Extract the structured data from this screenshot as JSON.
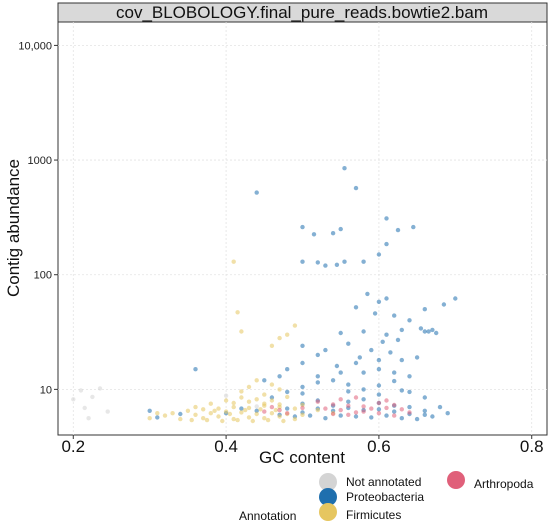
{
  "chart_data": {
    "type": "scatter",
    "title": "cov_BLOBOLOGY.final_pure_reads.bowtie2.bam",
    "xlabel": "GC content",
    "ylabel": "Contig abundance",
    "xlim": [
      0.18,
      0.82
    ],
    "ylim": [
      4,
      16000
    ],
    "y_scale": "log",
    "x_ticks": [
      0.2,
      0.4,
      0.6,
      0.8
    ],
    "x_tick_labels": [
      "0.2",
      "0.4",
      "0.6",
      "0.8"
    ],
    "y_ticks": [
      10,
      100,
      1000,
      10000
    ],
    "y_tick_labels": [
      "10",
      "100",
      "1000",
      "10,000"
    ],
    "grid": true,
    "legend": {
      "title": "Annotation",
      "placement": "bottom",
      "entries": [
        "Not annotated",
        "Proteobacteria",
        "Firmicutes",
        "Arthropoda"
      ]
    },
    "colors": {
      "Not annotated": "#d4d4d4",
      "Proteobacteria": "#1f6fae",
      "Firmicutes": "#e6c660",
      "Arthropoda": "#e0607a"
    },
    "series": [
      {
        "name": "Not annotated",
        "points": [
          [
            0.21,
            9.8
          ],
          [
            0.225,
            8.6
          ],
          [
            0.235,
            10.2
          ],
          [
            0.215,
            6.9
          ],
          [
            0.245,
            6.4
          ],
          [
            0.22,
            5.6
          ],
          [
            0.2,
            8.2
          ],
          [
            0.4,
            8.8
          ],
          [
            0.44,
            7.1
          ]
        ]
      },
      {
        "name": "Proteobacteria",
        "points": [
          [
            0.555,
            850
          ],
          [
            0.44,
            520
          ],
          [
            0.57,
            570
          ],
          [
            0.5,
            260
          ],
          [
            0.61,
            310
          ],
          [
            0.645,
            260
          ],
          [
            0.55,
            250
          ],
          [
            0.625,
            245
          ],
          [
            0.515,
            225
          ],
          [
            0.54,
            230
          ],
          [
            0.5,
            130
          ],
          [
            0.52,
            128
          ],
          [
            0.53,
            120
          ],
          [
            0.545,
            122
          ],
          [
            0.555,
            130
          ],
          [
            0.61,
            185
          ],
          [
            0.6,
            150
          ],
          [
            0.58,
            130
          ],
          [
            0.7,
            62
          ],
          [
            0.685,
            55
          ],
          [
            0.66,
            50
          ],
          [
            0.585,
            68
          ],
          [
            0.6,
            58
          ],
          [
            0.61,
            62
          ],
          [
            0.57,
            52
          ],
          [
            0.595,
            46
          ],
          [
            0.62,
            44
          ],
          [
            0.64,
            40
          ],
          [
            0.655,
            34
          ],
          [
            0.66,
            32
          ],
          [
            0.665,
            32
          ],
          [
            0.67,
            33
          ],
          [
            0.675,
            31
          ],
          [
            0.63,
            33
          ],
          [
            0.61,
            30
          ],
          [
            0.58,
            32
          ],
          [
            0.55,
            31
          ],
          [
            0.56,
            25
          ],
          [
            0.53,
            22
          ],
          [
            0.52,
            20
          ],
          [
            0.5,
            24
          ],
          [
            0.59,
            22
          ],
          [
            0.6,
            18
          ],
          [
            0.57,
            17
          ],
          [
            0.63,
            18
          ],
          [
            0.65,
            19
          ],
          [
            0.5,
            17
          ],
          [
            0.48,
            15
          ],
          [
            0.55,
            14
          ],
          [
            0.6,
            15
          ],
          [
            0.62,
            14
          ],
          [
            0.58,
            14
          ],
          [
            0.64,
            13
          ],
          [
            0.52,
            13
          ],
          [
            0.47,
            13
          ],
          [
            0.45,
            12
          ],
          [
            0.36,
            15
          ],
          [
            0.3,
            6.5
          ],
          [
            0.31,
            5.7
          ],
          [
            0.34,
            6.1
          ],
          [
            0.46,
            8.5
          ],
          [
            0.48,
            9.5
          ],
          [
            0.5,
            10.5
          ],
          [
            0.52,
            11.5
          ],
          [
            0.54,
            12
          ],
          [
            0.56,
            11
          ],
          [
            0.58,
            10
          ],
          [
            0.6,
            10.8
          ],
          [
            0.62,
            11.8
          ],
          [
            0.64,
            9.5
          ],
          [
            0.66,
            8.5
          ],
          [
            0.68,
            7
          ],
          [
            0.69,
            6.2
          ],
          [
            0.5,
            7.5
          ],
          [
            0.52,
            8
          ],
          [
            0.54,
            7.2
          ],
          [
            0.56,
            7.8
          ],
          [
            0.58,
            8.2
          ],
          [
            0.6,
            7.6
          ],
          [
            0.62,
            7.2
          ],
          [
            0.64,
            7
          ],
          [
            0.66,
            6.5
          ],
          [
            0.48,
            6.8
          ],
          [
            0.5,
            6.3
          ],
          [
            0.52,
            6.8
          ],
          [
            0.54,
            6.5
          ],
          [
            0.56,
            6.9
          ],
          [
            0.58,
            6.6
          ],
          [
            0.6,
            6.7
          ],
          [
            0.62,
            6.4
          ],
          [
            0.64,
            6.1
          ],
          [
            0.66,
            6
          ],
          [
            0.47,
            6
          ],
          [
            0.49,
            5.8
          ],
          [
            0.51,
            5.9
          ],
          [
            0.53,
            5.6
          ],
          [
            0.55,
            5.9
          ],
          [
            0.57,
            5.8
          ],
          [
            0.59,
            5.7
          ],
          [
            0.61,
            5.9
          ],
          [
            0.63,
            5.6
          ],
          [
            0.65,
            5.5
          ],
          [
            0.67,
            5.8
          ],
          [
            0.44,
            6.5
          ],
          [
            0.42,
            6.8
          ],
          [
            0.4,
            6.2
          ],
          [
            0.5,
            9.2
          ],
          [
            0.56,
            9.6
          ],
          [
            0.6,
            9
          ],
          [
            0.63,
            9.8
          ],
          [
            0.545,
            16
          ],
          [
            0.575,
            19
          ],
          [
            0.615,
            21
          ],
          [
            0.605,
            26
          ],
          [
            0.625,
            27
          ]
        ]
      },
      {
        "name": "Firmicutes",
        "points": [
          [
            0.41,
            130
          ],
          [
            0.415,
            47
          ],
          [
            0.42,
            32
          ],
          [
            0.49,
            36
          ],
          [
            0.48,
            30
          ],
          [
            0.47,
            28
          ],
          [
            0.46,
            24
          ],
          [
            0.44,
            12
          ],
          [
            0.43,
            10.5
          ],
          [
            0.45,
            9
          ],
          [
            0.42,
            8.5
          ],
          [
            0.4,
            8
          ],
          [
            0.38,
            7.5
          ],
          [
            0.36,
            7
          ],
          [
            0.35,
            6.5
          ],
          [
            0.33,
            6.2
          ],
          [
            0.32,
            5.9
          ],
          [
            0.34,
            5.5
          ],
          [
            0.37,
            5.6
          ],
          [
            0.39,
            5.8
          ],
          [
            0.41,
            5.5
          ],
          [
            0.43,
            5.7
          ],
          [
            0.45,
            5.6
          ],
          [
            0.47,
            5.8
          ],
          [
            0.49,
            5.5
          ],
          [
            0.36,
            6
          ],
          [
            0.38,
            6.2
          ],
          [
            0.4,
            6.4
          ],
          [
            0.42,
            6.3
          ],
          [
            0.44,
            6.1
          ],
          [
            0.46,
            6.2
          ],
          [
            0.48,
            6.1
          ],
          [
            0.5,
            6
          ],
          [
            0.37,
            6.7
          ],
          [
            0.39,
            6.8
          ],
          [
            0.41,
            7
          ],
          [
            0.43,
            6.9
          ],
          [
            0.45,
            7.2
          ],
          [
            0.47,
            7
          ],
          [
            0.49,
            6.8
          ],
          [
            0.41,
            7.6
          ],
          [
            0.43,
            7.8
          ],
          [
            0.45,
            7.5
          ],
          [
            0.47,
            7.4
          ],
          [
            0.44,
            8.2
          ],
          [
            0.46,
            8
          ],
          [
            0.48,
            8.6
          ],
          [
            0.5,
            7.3
          ],
          [
            0.52,
            6.6
          ],
          [
            0.54,
            6.2
          ],
          [
            0.3,
            5.6
          ],
          [
            0.31,
            6.2
          ],
          [
            0.355,
            5.4
          ],
          [
            0.375,
            5.4
          ],
          [
            0.395,
            5.3
          ],
          [
            0.415,
            5.4
          ],
          [
            0.435,
            5.3
          ],
          [
            0.455,
            5.4
          ],
          [
            0.475,
            5.3
          ],
          [
            0.425,
            6.6
          ],
          [
            0.445,
            6.7
          ],
          [
            0.465,
            6.6
          ],
          [
            0.405,
            6.1
          ],
          [
            0.385,
            6.5
          ],
          [
            0.46,
            11
          ],
          [
            0.47,
            10
          ],
          [
            0.42,
            9.6
          ]
        ]
      },
      {
        "name": "Arthropoda",
        "points": [
          [
            0.52,
            7.8
          ],
          [
            0.53,
            6.8
          ],
          [
            0.54,
            7.4
          ],
          [
            0.55,
            6.6
          ],
          [
            0.56,
            7.2
          ],
          [
            0.57,
            6.3
          ],
          [
            0.58,
            7.1
          ],
          [
            0.59,
            6.8
          ],
          [
            0.6,
            7.6
          ],
          [
            0.61,
            6.9
          ],
          [
            0.62,
            7.3
          ],
          [
            0.63,
            6.7
          ],
          [
            0.54,
            6.1
          ],
          [
            0.56,
            6
          ],
          [
            0.58,
            6.4
          ],
          [
            0.6,
            6.2
          ],
          [
            0.45,
            6.4
          ],
          [
            0.46,
            7
          ],
          [
            0.47,
            6.6
          ],
          [
            0.48,
            6.2
          ],
          [
            0.5,
            6.9
          ],
          [
            0.55,
            8.2
          ],
          [
            0.57,
            8.5
          ],
          [
            0.61,
            8
          ],
          [
            0.64,
            6.3
          ],
          [
            0.62,
            5.9
          ]
        ]
      }
    ]
  }
}
